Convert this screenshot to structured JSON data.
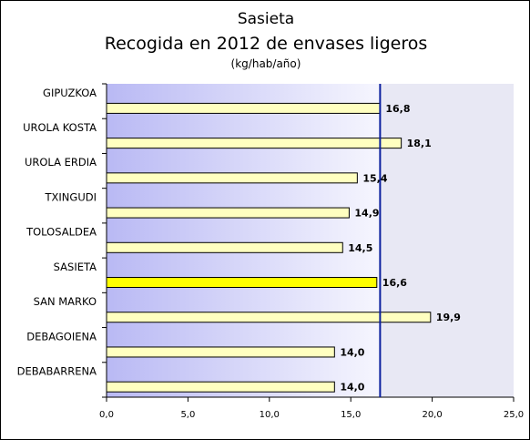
{
  "chart_data": {
    "type": "bar",
    "orientation": "horizontal",
    "title": "Sasieta",
    "subtitle": "Recogida en 2012 de envases ligeros",
    "unit_label": "(kg/hab/año)",
    "categories": [
      "GIPUZKOA",
      "UROLA KOSTA",
      "UROLA ERDIA",
      "TXINGUDI",
      "TOLOSALDEA",
      "SASIETA",
      "SAN MARKO",
      "DEBAGOIENA",
      "DEBABARRENA"
    ],
    "values": [
      16.8,
      18.1,
      15.4,
      14.9,
      14.5,
      16.6,
      19.9,
      14.0,
      14.0
    ],
    "value_labels": [
      "16,8",
      "18,1",
      "15,4",
      "14,9",
      "14,5",
      "16,6",
      "19,9",
      "14,0",
      "14,0"
    ],
    "highlight_category": "SASIETA",
    "reference_line": 16.8,
    "xlim": [
      0,
      25
    ],
    "x_ticks": [
      0,
      5,
      10,
      15,
      20,
      25
    ],
    "x_tick_labels": [
      "0,0",
      "5,0",
      "10,0",
      "15,0",
      "20,0",
      "25,0"
    ],
    "grid": false,
    "legend": "none",
    "colors": {
      "bar": "#ffffc0",
      "bar_highlight": "#ffff00",
      "bar_border": "#000000",
      "reference_line": "#0a1f9e",
      "plot_gradient_left": "#b9b9f4",
      "plot_gradient_right": "#f6f6fe",
      "plot_right_zone": "#e8e8f4"
    }
  }
}
